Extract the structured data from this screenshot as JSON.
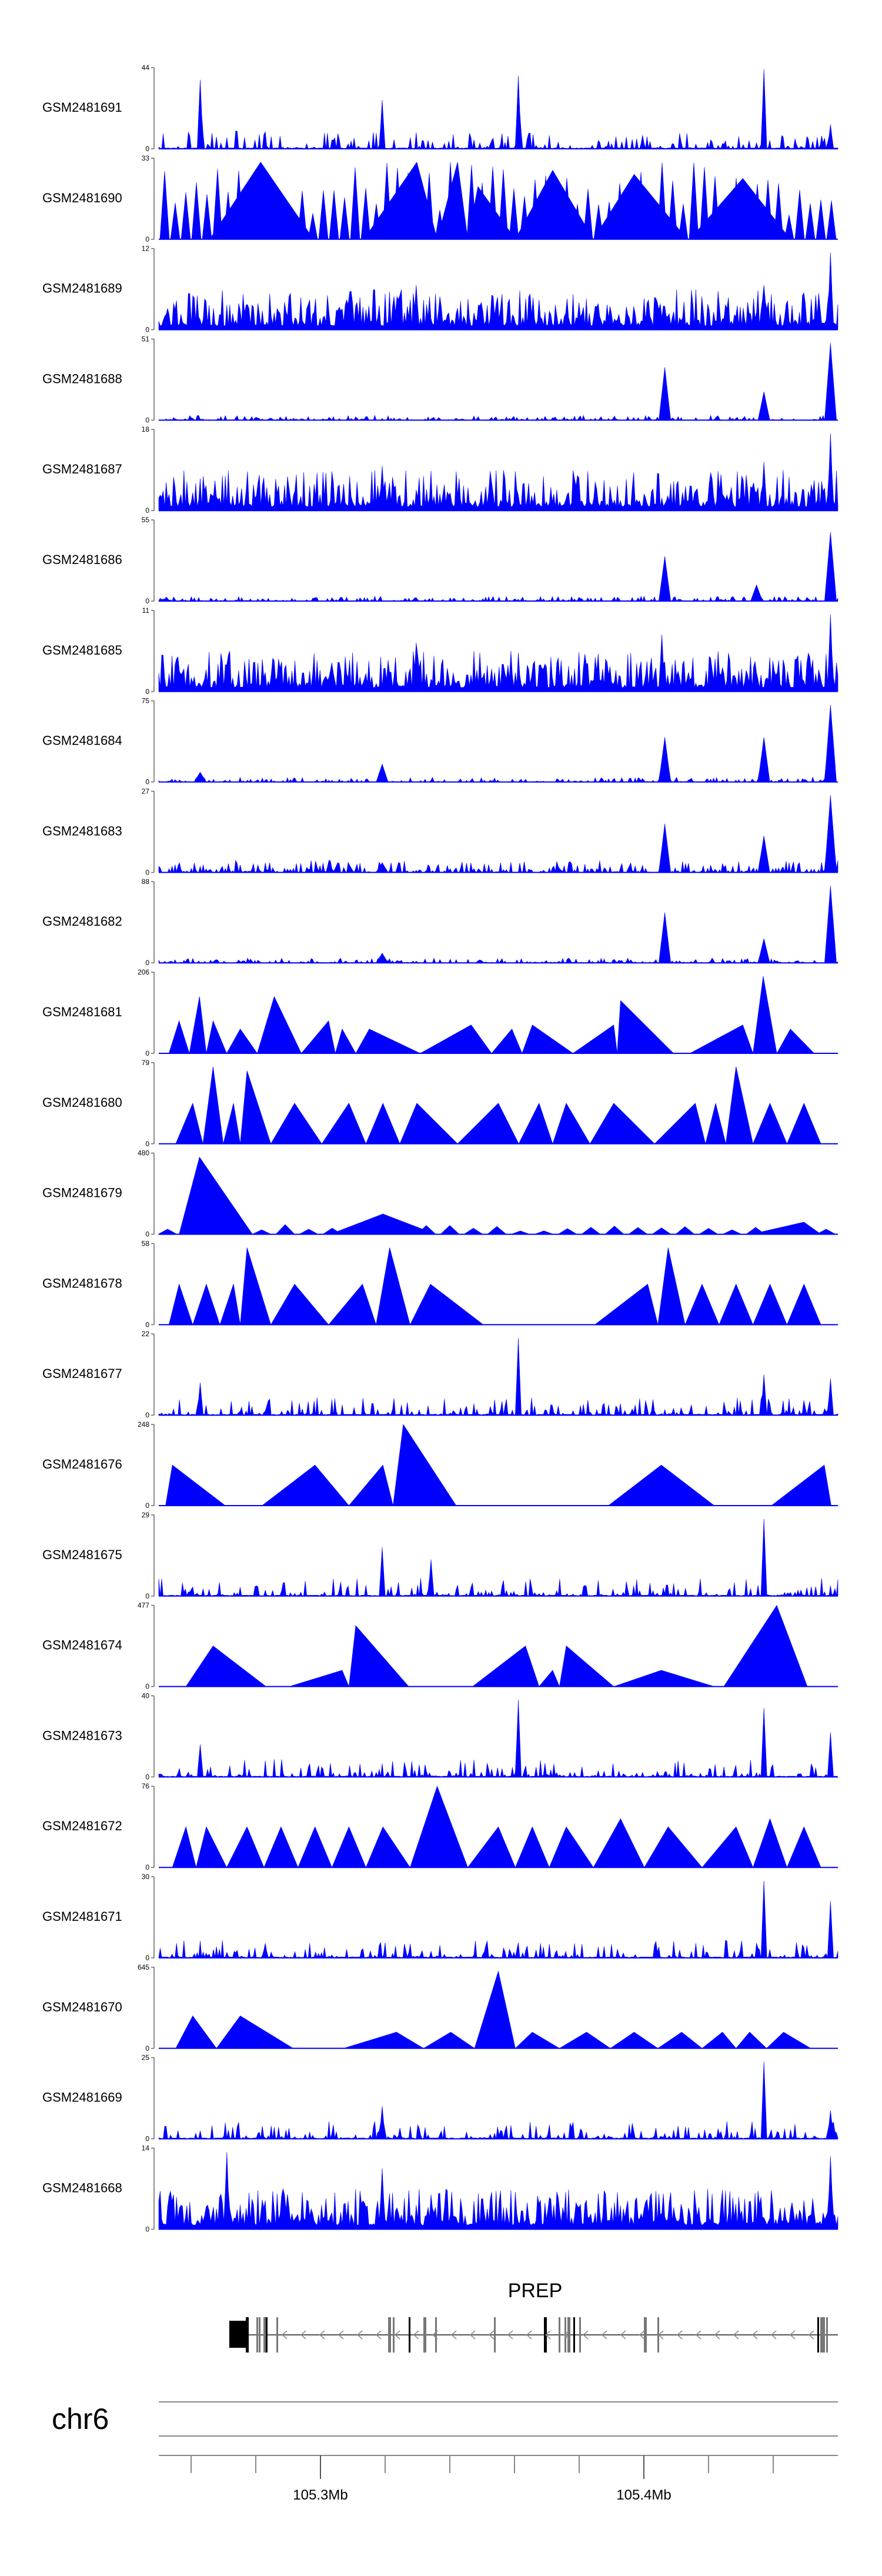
{
  "chart_data": {
    "type": "area",
    "title": "",
    "fill_color": "#0000ff",
    "tracks": [
      {
        "name": "GSM2481691",
        "max": "44",
        "min": "0",
        "profile": "spiky-sparse",
        "peaks": [
          [
            0.06,
            0.85
          ],
          [
            0.33,
            0.6
          ],
          [
            0.53,
            0.9
          ],
          [
            0.89,
            0.98
          ],
          [
            0.99,
            0.3
          ]
        ]
      },
      {
        "name": "GSM2481690",
        "max": "33",
        "min": "0",
        "profile": "dense-triangles",
        "peaks": [
          [
            0.15,
            0.95
          ],
          [
            0.38,
            0.95
          ],
          [
            0.44,
            0.95
          ],
          [
            0.47,
            0.65
          ],
          [
            0.58,
            0.85
          ],
          [
            0.7,
            0.8
          ],
          [
            0.86,
            0.75
          ]
        ]
      },
      {
        "name": "GSM2481689",
        "max": "12",
        "min": "0",
        "profile": "dense",
        "peaks": [
          [
            0.38,
            0.55
          ],
          [
            0.89,
            0.55
          ],
          [
            0.99,
            0.95
          ]
        ]
      },
      {
        "name": "GSM2481688",
        "max": "51",
        "min": "0",
        "profile": "peaky",
        "peaks": [
          [
            0.745,
            0.65
          ],
          [
            0.89,
            0.35
          ],
          [
            0.99,
            0.95
          ]
        ]
      },
      {
        "name": "GSM2481687",
        "max": "18",
        "min": "0",
        "profile": "dense",
        "peaks": [
          [
            0.33,
            0.55
          ],
          [
            0.89,
            0.6
          ],
          [
            0.99,
            0.95
          ]
        ]
      },
      {
        "name": "GSM2481686",
        "max": "55",
        "min": "0",
        "profile": "peaky",
        "peaks": [
          [
            0.745,
            0.55
          ],
          [
            0.88,
            0.2
          ],
          [
            0.99,
            0.85
          ]
        ]
      },
      {
        "name": "GSM2481685",
        "max": "11",
        "min": "0",
        "profile": "dense",
        "peaks": [
          [
            0.38,
            0.6
          ],
          [
            0.74,
            0.7
          ],
          [
            0.99,
            0.95
          ]
        ]
      },
      {
        "name": "GSM2481684",
        "max": "75",
        "min": "0",
        "profile": "peaky",
        "peaks": [
          [
            0.06,
            0.12
          ],
          [
            0.33,
            0.22
          ],
          [
            0.745,
            0.55
          ],
          [
            0.89,
            0.55
          ],
          [
            0.99,
            0.95
          ]
        ]
      },
      {
        "name": "GSM2481683",
        "max": "27",
        "min": "0",
        "profile": "peaky-noisy",
        "peaks": [
          [
            0.33,
            0.12
          ],
          [
            0.745,
            0.6
          ],
          [
            0.89,
            0.45
          ],
          [
            0.99,
            0.95
          ]
        ]
      },
      {
        "name": "GSM2481682",
        "max": "88",
        "min": "0",
        "profile": "peaky",
        "peaks": [
          [
            0.33,
            0.12
          ],
          [
            0.745,
            0.62
          ],
          [
            0.89,
            0.3
          ],
          [
            0.99,
            0.95
          ]
        ]
      },
      {
        "name": "GSM2481681",
        "max": "206",
        "min": "0",
        "profile": "triangles",
        "peaks": [
          [
            0.03,
            0.4
          ],
          [
            0.06,
            0.7
          ],
          [
            0.08,
            0.4
          ],
          [
            0.12,
            0.3
          ],
          [
            0.17,
            0.7
          ],
          [
            0.25,
            0.4
          ],
          [
            0.27,
            0.3
          ],
          [
            0.31,
            0.3
          ],
          [
            0.46,
            0.35
          ],
          [
            0.52,
            0.3
          ],
          [
            0.55,
            0.35
          ],
          [
            0.67,
            0.35
          ],
          [
            0.68,
            0.65
          ],
          [
            0.86,
            0.35
          ],
          [
            0.89,
            0.95
          ],
          [
            0.93,
            0.3
          ]
        ]
      },
      {
        "name": "GSM2481680",
        "max": "79",
        "min": "0",
        "profile": "triangles",
        "peaks": [
          [
            0.05,
            0.5
          ],
          [
            0.08,
            0.95
          ],
          [
            0.11,
            0.5
          ],
          [
            0.13,
            0.9
          ],
          [
            0.2,
            0.5
          ],
          [
            0.28,
            0.5
          ],
          [
            0.33,
            0.5
          ],
          [
            0.38,
            0.5
          ],
          [
            0.5,
            0.5
          ],
          [
            0.56,
            0.5
          ],
          [
            0.6,
            0.5
          ],
          [
            0.67,
            0.5
          ],
          [
            0.79,
            0.5
          ],
          [
            0.82,
            0.5
          ],
          [
            0.85,
            0.95
          ],
          [
            0.9,
            0.5
          ],
          [
            0.95,
            0.5
          ]
        ]
      },
      {
        "name": "GSM2481679",
        "max": "480",
        "min": "0",
        "profile": "low-triangles",
        "peaks": [
          [
            0.06,
            0.95
          ],
          [
            0.33,
            0.25
          ],
          [
            0.95,
            0.15
          ]
        ]
      },
      {
        "name": "GSM2481678",
        "max": "58",
        "min": "0",
        "profile": "triangles",
        "peaks": [
          [
            0.03,
            0.5
          ],
          [
            0.07,
            0.5
          ],
          [
            0.11,
            0.5
          ],
          [
            0.13,
            0.95
          ],
          [
            0.2,
            0.5
          ],
          [
            0.3,
            0.5
          ],
          [
            0.34,
            0.95
          ],
          [
            0.4,
            0.5
          ],
          [
            0.72,
            0.5
          ],
          [
            0.75,
            0.95
          ],
          [
            0.8,
            0.5
          ],
          [
            0.85,
            0.5
          ],
          [
            0.9,
            0.5
          ],
          [
            0.95,
            0.5
          ]
        ]
      },
      {
        "name": "GSM2481677",
        "max": "22",
        "min": "0",
        "profile": "spiky-sparse",
        "peaks": [
          [
            0.06,
            0.4
          ],
          [
            0.53,
            0.95
          ],
          [
            0.89,
            0.5
          ],
          [
            0.99,
            0.45
          ]
        ]
      },
      {
        "name": "GSM2481676",
        "max": "248",
        "min": "0",
        "profile": "triangles",
        "peaks": [
          [
            0.02,
            0.5
          ],
          [
            0.23,
            0.5
          ],
          [
            0.33,
            0.5
          ],
          [
            0.36,
            1.0
          ],
          [
            0.74,
            0.5
          ],
          [
            0.98,
            0.5
          ]
        ]
      },
      {
        "name": "GSM2481675",
        "max": "29",
        "min": "0",
        "profile": "spiky-sparse",
        "peaks": [
          [
            0.33,
            0.6
          ],
          [
            0.4,
            0.45
          ],
          [
            0.89,
            0.95
          ]
        ]
      },
      {
        "name": "GSM2481674",
        "max": "477",
        "min": "0",
        "profile": "triangles",
        "peaks": [
          [
            0.08,
            0.5
          ],
          [
            0.27,
            0.2
          ],
          [
            0.29,
            0.75
          ],
          [
            0.54,
            0.5
          ],
          [
            0.58,
            0.2
          ],
          [
            0.6,
            0.5
          ],
          [
            0.74,
            0.2
          ],
          [
            0.91,
            1.0
          ]
        ]
      },
      {
        "name": "GSM2481673",
        "max": "40",
        "min": "0",
        "profile": "spiky-sparse",
        "peaks": [
          [
            0.06,
            0.4
          ],
          [
            0.53,
            0.95
          ],
          [
            0.89,
            0.85
          ],
          [
            0.99,
            0.55
          ]
        ]
      },
      {
        "name": "GSM2481672",
        "max": "76",
        "min": "0",
        "profile": "triangles",
        "peaks": [
          [
            0.04,
            0.5
          ],
          [
            0.07,
            0.5
          ],
          [
            0.13,
            0.5
          ],
          [
            0.18,
            0.5
          ],
          [
            0.23,
            0.5
          ],
          [
            0.28,
            0.5
          ],
          [
            0.33,
            0.5
          ],
          [
            0.41,
            1.0
          ],
          [
            0.5,
            0.5
          ],
          [
            0.55,
            0.5
          ],
          [
            0.6,
            0.5
          ],
          [
            0.68,
            0.6
          ],
          [
            0.75,
            0.5
          ],
          [
            0.85,
            0.5
          ],
          [
            0.9,
            0.6
          ],
          [
            0.95,
            0.5
          ]
        ]
      },
      {
        "name": "GSM2481671",
        "max": "30",
        "min": "0",
        "profile": "spiky-sparse",
        "peaks": [
          [
            0.89,
            0.95
          ],
          [
            0.99,
            0.7
          ]
        ]
      },
      {
        "name": "GSM2481670",
        "max": "645",
        "min": "0",
        "profile": "triangles",
        "peaks": [
          [
            0.05,
            0.4
          ],
          [
            0.12,
            0.4
          ],
          [
            0.35,
            0.2
          ],
          [
            0.43,
            0.2
          ],
          [
            0.5,
            0.95
          ],
          [
            0.55,
            0.2
          ],
          [
            0.63,
            0.2
          ],
          [
            0.7,
            0.2
          ],
          [
            0.77,
            0.2
          ],
          [
            0.83,
            0.2
          ],
          [
            0.87,
            0.2
          ],
          [
            0.92,
            0.2
          ]
        ]
      },
      {
        "name": "GSM2481669",
        "max": "25",
        "min": "0",
        "profile": "spiky-sparse",
        "peaks": [
          [
            0.33,
            0.4
          ],
          [
            0.89,
            0.95
          ],
          [
            0.99,
            0.35
          ]
        ]
      },
      {
        "name": "GSM2481668",
        "max": "14",
        "min": "0",
        "profile": "dense",
        "peaks": [
          [
            0.1,
            0.95
          ],
          [
            0.33,
            0.75
          ],
          [
            0.99,
            0.9
          ]
        ]
      }
    ],
    "gene": {
      "name": "PREP",
      "strand": "-"
    },
    "chromosome": "chr6",
    "axis": {
      "range_mb": [
        105.25,
        105.46
      ],
      "ticks": [
        "105.3Mb",
        "105.4Mb"
      ]
    }
  }
}
